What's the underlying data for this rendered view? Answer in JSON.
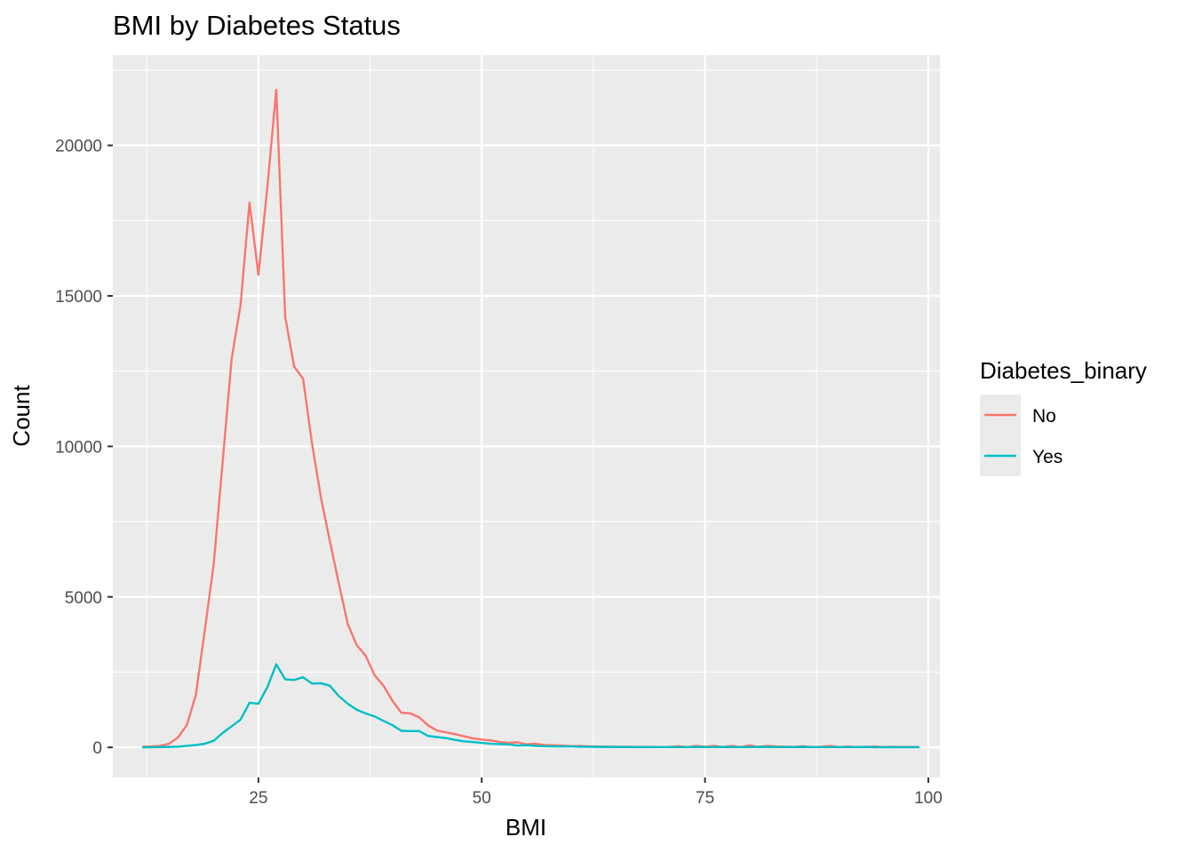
{
  "chart_data": {
    "type": "line",
    "title": "BMI by Diabetes Status",
    "xlabel": "BMI",
    "ylabel": "Count",
    "xlim": [
      8.7,
      101.3
    ],
    "ylim": [
      -1000,
      23000
    ],
    "x_ticks": [
      25,
      50,
      75,
      100
    ],
    "x_tick_labels": [
      "25",
      "50",
      "75",
      "100"
    ],
    "y_ticks": [
      0,
      5000,
      10000,
      15000,
      20000
    ],
    "y_tick_labels": [
      "0",
      "5000",
      "10000",
      "15000",
      "20000"
    ],
    "grid": true,
    "legend": {
      "title": "Diabetes_binary",
      "position": "right"
    },
    "x": [
      12,
      13,
      14,
      15,
      16,
      17,
      18,
      19,
      20,
      21,
      22,
      23,
      24,
      25,
      26,
      27,
      28,
      29,
      30,
      31,
      32,
      33,
      34,
      35,
      36,
      37,
      38,
      39,
      40,
      41,
      42,
      43,
      44,
      45,
      46,
      47,
      48,
      49,
      50,
      51,
      52,
      53,
      54,
      55,
      56,
      57,
      58,
      59,
      60,
      61,
      62,
      63,
      64,
      65,
      66,
      67,
      68,
      69,
      70,
      71,
      72,
      73,
      74,
      75,
      76,
      77,
      78,
      79,
      80,
      81,
      82,
      83,
      84,
      85,
      86,
      87,
      88,
      89,
      90,
      91,
      92,
      93,
      94,
      95,
      96,
      97,
      98,
      99
    ],
    "series": [
      {
        "name": "No",
        "color": "#F8766D",
        "values": [
          20,
          30,
          50,
          120,
          330,
          750,
          1750,
          3900,
          6100,
          9500,
          12900,
          14700,
          18100,
          15700,
          18600,
          21850,
          14300,
          12650,
          12250,
          10100,
          8300,
          6850,
          5450,
          4100,
          3400,
          3050,
          2400,
          2050,
          1550,
          1150,
          1130,
          1000,
          730,
          560,
          500,
          440,
          370,
          300,
          260,
          230,
          180,
          150,
          170,
          100,
          120,
          80,
          70,
          60,
          40,
          50,
          30,
          30,
          25,
          20,
          20,
          15,
          15,
          15,
          10,
          15,
          40,
          10,
          50,
          20,
          50,
          10,
          50,
          10,
          70,
          15,
          50,
          30,
          20,
          15,
          40,
          10,
          20,
          50,
          10,
          30,
          10,
          10,
          30,
          10,
          20,
          10,
          15,
          10
        ]
      },
      {
        "name": "Yes",
        "color": "#00BFC4",
        "values": [
          0,
          5,
          10,
          15,
          25,
          50,
          80,
          120,
          220,
          480,
          700,
          920,
          1480,
          1450,
          2000,
          2760,
          2260,
          2240,
          2330,
          2120,
          2130,
          2050,
          1700,
          1450,
          1250,
          1130,
          1030,
          880,
          740,
          550,
          540,
          540,
          380,
          340,
          310,
          250,
          200,
          180,
          150,
          120,
          110,
          100,
          60,
          70,
          50,
          40,
          30,
          30,
          35,
          20,
          20,
          15,
          15,
          15,
          10,
          10,
          10,
          10,
          10,
          10,
          10,
          10,
          15,
          10,
          10,
          15,
          10,
          10,
          10,
          15,
          15,
          10,
          10,
          10,
          15,
          10,
          10,
          10,
          10,
          10,
          10,
          15,
          5,
          5,
          10,
          5,
          5,
          5
        ]
      }
    ]
  }
}
